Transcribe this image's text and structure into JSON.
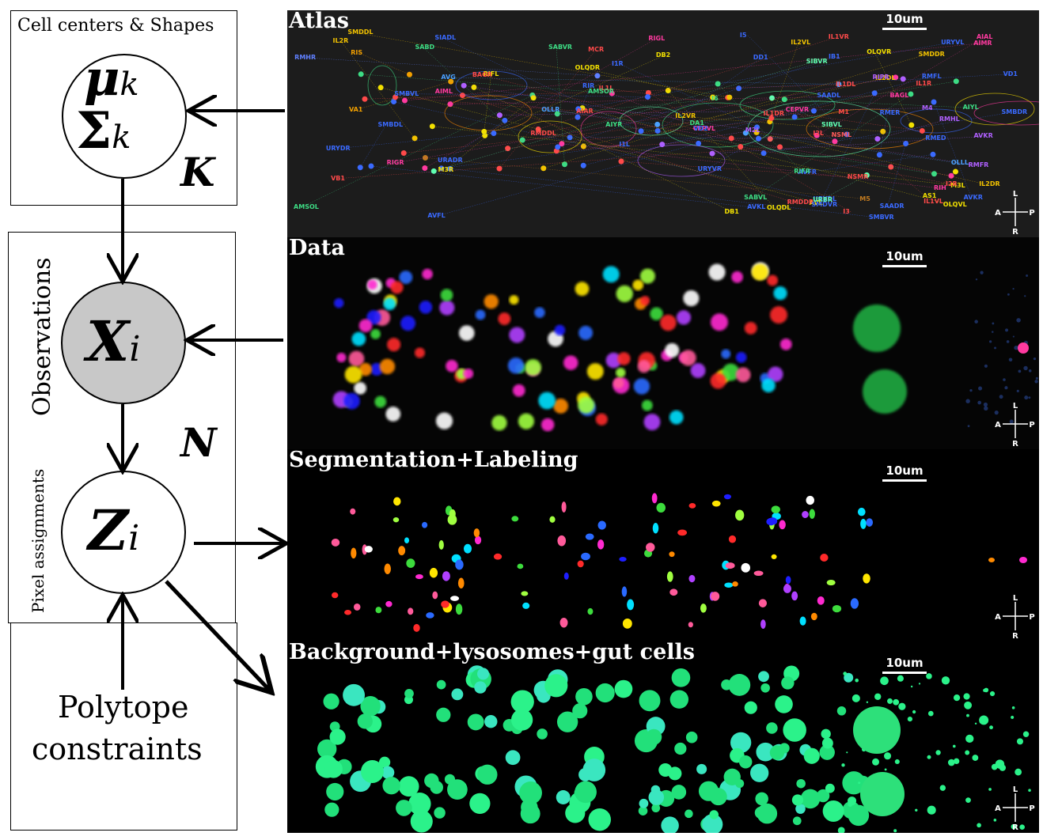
{
  "model": {
    "cell_box_label": "Cell centers & Shapes",
    "obs_box_label": "Observations",
    "pixel_label": "Pixel assignments",
    "plate_k": "K",
    "plate_n": "N",
    "polytope_line1": "Polytope",
    "polytope_line2": "constraints",
    "node_mu": "μ",
    "node_mu_sub": "k",
    "node_sigma": "Σ",
    "node_sigma_sub": "k",
    "node_x": "X",
    "node_x_sub": "i",
    "node_z": "Z",
    "node_z_sub": "i"
  },
  "panels": {
    "atlas": {
      "title": "Atlas",
      "scale": "10um"
    },
    "data": {
      "title": "Data",
      "scale": "10um"
    },
    "segmentation": {
      "title": "Segmentation+Labeling",
      "scale": "10um"
    },
    "background": {
      "title": "Background+lysosomes+gut cells",
      "scale": "10um"
    }
  },
  "compass": {
    "l": "L",
    "r": "R",
    "a": "A",
    "p": "P"
  },
  "atlas_labels": [
    {
      "text": "AMSOL",
      "color": "#3ddc84"
    },
    {
      "text": "I2L",
      "color": "#ff4a4a"
    },
    {
      "text": "NSML",
      "color": "#ff5a5a"
    },
    {
      "text": "IL2DL",
      "color": "#f2c200"
    },
    {
      "text": "IL2VL",
      "color": "#f2c200"
    },
    {
      "text": "M3L",
      "color": "#f2e000"
    },
    {
      "text": "OLLL",
      "color": "#4aa0ff"
    },
    {
      "text": "OLQVL",
      "color": "#f2e000"
    },
    {
      "text": "BAGL",
      "color": "#ff3aa0"
    },
    {
      "text": "IL1L",
      "color": "#ff4a4a"
    },
    {
      "text": "URYDL",
      "color": "#3a6aff"
    },
    {
      "text": "CEPVL",
      "color": "#ff3aa0"
    },
    {
      "text": "URYVL",
      "color": "#3a6aff"
    },
    {
      "text": "OLQDL",
      "color": "#f2e000"
    },
    {
      "text": "RIR",
      "color": "#3a6aff"
    },
    {
      "text": "RMDDL",
      "color": "#ff4a4a"
    },
    {
      "text": "RMHL",
      "color": "#b060ff"
    },
    {
      "text": "M2L",
      "color": "#b060ff"
    },
    {
      "text": "AIYL",
      "color": "#3ddc84"
    },
    {
      "text": "I6",
      "color": "#3ddc84"
    },
    {
      "text": "M5",
      "color": "#c07a20"
    },
    {
      "text": "VA1",
      "color": "#f2a000"
    },
    {
      "text": "VD1",
      "color": "#3a6aff"
    },
    {
      "text": "I1L",
      "color": "#3a6aff"
    },
    {
      "text": "IL1VL",
      "color": "#ff4a4a"
    },
    {
      "text": "IL1DL",
      "color": "#ff4a4a"
    },
    {
      "text": "SMDDL",
      "color": "#f2c200"
    },
    {
      "text": "SIBVL",
      "color": "#60ffb0"
    },
    {
      "text": "RMFL",
      "color": "#3a6aff"
    },
    {
      "text": "SMBDL",
      "color": "#3a6aff"
    },
    {
      "text": "AVKL",
      "color": "#3a6aff"
    },
    {
      "text": "AVFL",
      "color": "#3a6aff"
    },
    {
      "text": "RIFL",
      "color": "#f2e000"
    },
    {
      "text": "VB1",
      "color": "#ff4a4a"
    },
    {
      "text": "RIGL",
      "color": "#ff3aa0"
    },
    {
      "text": "RIGR",
      "color": "#ff3aa0"
    },
    {
      "text": "AS1",
      "color": "#f2e000"
    },
    {
      "text": "M1",
      "color": "#ff4a4a"
    },
    {
      "text": "M4",
      "color": "#b060ff"
    },
    {
      "text": "RMED",
      "color": "#3a6aff"
    },
    {
      "text": "SAADL",
      "color": "#3a6aff"
    },
    {
      "text": "AIML",
      "color": "#ff3aa0"
    },
    {
      "text": "SABVL",
      "color": "#3ddc84"
    },
    {
      "text": "DD1",
      "color": "#3a6aff"
    },
    {
      "text": "I3",
      "color": "#ff4a4a"
    },
    {
      "text": "I1R",
      "color": "#3a6aff"
    },
    {
      "text": "VD2",
      "color": "#3a6aff"
    },
    {
      "text": "IL1VR",
      "color": "#ff4a4a"
    },
    {
      "text": "M3R",
      "color": "#f2e000"
    },
    {
      "text": "IL1DR",
      "color": "#ff4a4a"
    },
    {
      "text": "SAADR",
      "color": "#3a6aff"
    },
    {
      "text": "AIAL",
      "color": "#ff3aa0"
    },
    {
      "text": "AVL",
      "color": "#f2e000"
    },
    {
      "text": "RIS",
      "color": "#f2a000"
    },
    {
      "text": "DB1",
      "color": "#f2e000"
    },
    {
      "text": "URADR",
      "color": "#3a6aff"
    },
    {
      "text": "SMBDR",
      "color": "#3a6aff"
    },
    {
      "text": "AIAR",
      "color": "#ff4a4a"
    },
    {
      "text": "SMBVR",
      "color": "#3a6aff"
    },
    {
      "text": "DB2",
      "color": "#f2e000"
    },
    {
      "text": "SABD",
      "color": "#3ddc84"
    },
    {
      "text": "DA1",
      "color": "#3ddc84"
    },
    {
      "text": "AMSOR",
      "color": "#3ddc84"
    },
    {
      "text": "MCR",
      "color": "#ff4a4a"
    },
    {
      "text": "NSMR",
      "color": "#ff4a4a"
    },
    {
      "text": "IL2DR",
      "color": "#f2c200"
    },
    {
      "text": "OLLR",
      "color": "#4aa0ff"
    },
    {
      "text": "URYVR",
      "color": "#3a6aff"
    },
    {
      "text": "URBR",
      "color": "#60ffb0"
    },
    {
      "text": "AIYR",
      "color": "#3ddc84"
    },
    {
      "text": "SABVR",
      "color": "#3ddc84"
    },
    {
      "text": "AVFR",
      "color": "#3a6aff"
    },
    {
      "text": "AVG",
      "color": "#4aa0ff"
    },
    {
      "text": "I2R",
      "color": "#ff4a4a"
    },
    {
      "text": "IL2VR",
      "color": "#f2c200"
    },
    {
      "text": "IL1R",
      "color": "#ff4a4a"
    },
    {
      "text": "OLQDR",
      "color": "#f2e000"
    },
    {
      "text": "RIH",
      "color": "#ff3aa0"
    },
    {
      "text": "SMDDR",
      "color": "#f2c200"
    },
    {
      "text": "RMHR",
      "color": "#6080ff"
    },
    {
      "text": "RMDDR",
      "color": "#ff4a4a"
    },
    {
      "text": "RMFR",
      "color": "#b060ff"
    },
    {
      "text": "I5",
      "color": "#3a6aff"
    },
    {
      "text": "IB1",
      "color": "#3a6aff"
    },
    {
      "text": "AVKR",
      "color": "#b060ff"
    },
    {
      "text": "RIFR",
      "color": "#3ddc84"
    },
    {
      "text": "URYDR",
      "color": "#3a6aff"
    },
    {
      "text": "BAGR",
      "color": "#ff4a4a"
    },
    {
      "text": "RIPR",
      "color": "#b060ff"
    },
    {
      "text": "CEPVR",
      "color": "#ff3aa0"
    },
    {
      "text": "OLQVR",
      "color": "#f2e000"
    },
    {
      "text": "RMER",
      "color": "#3a6aff"
    },
    {
      "text": "SMDVR",
      "color": "#3a6aff"
    },
    {
      "text": "SIBVR",
      "color": "#60ffb0"
    },
    {
      "text": "AIMR",
      "color": "#ff3aa0"
    },
    {
      "text": "AVKR",
      "color": "#3a6aff"
    },
    {
      "text": "SIADL",
      "color": "#3a6aff"
    },
    {
      "text": "SMBVL",
      "color": "#3a6aff"
    },
    {
      "text": "IL2R",
      "color": "#f2c200"
    }
  ]
}
